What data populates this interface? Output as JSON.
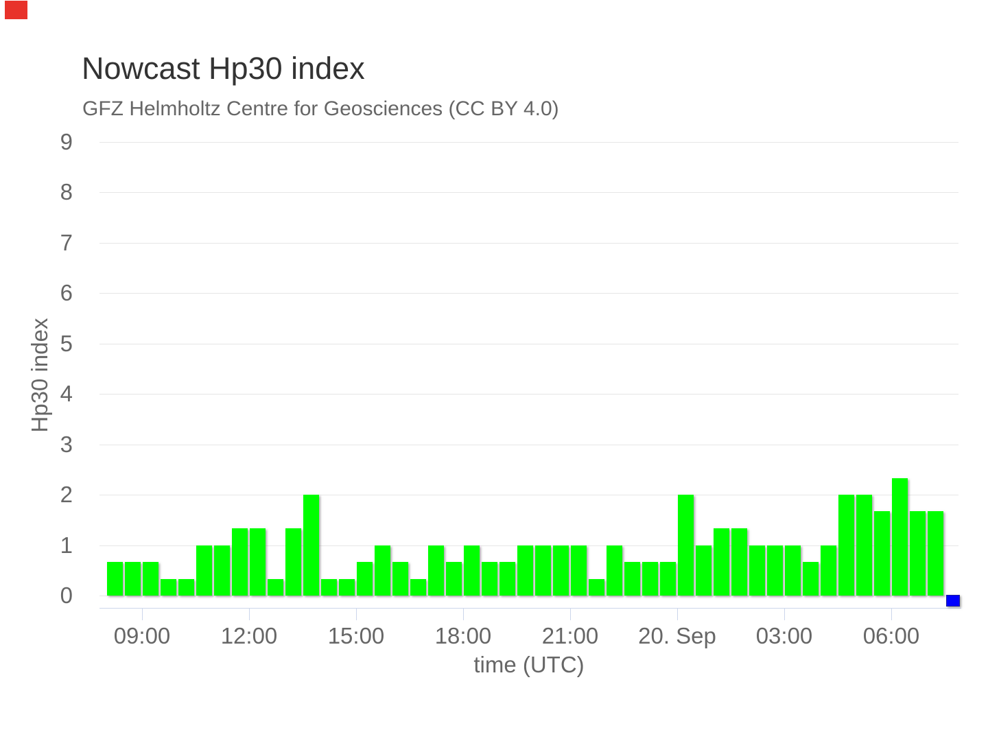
{
  "page": {
    "background": "#ffffff",
    "corner_marker": {
      "color": "#e8322a"
    }
  },
  "chart_data": {
    "type": "bar",
    "title": "Nowcast Hp30 index",
    "subtitle": "GFZ Helmholtz Centre for Geosciences (CC BY 4.0)",
    "xlabel": "time (UTC)",
    "ylabel": "Hp30 index",
    "ylim": [
      0,
      9
    ],
    "yticks": [
      0,
      1,
      2,
      3,
      4,
      5,
      6,
      7,
      8,
      9
    ],
    "xticks": [
      "09:00",
      "12:00",
      "15:00",
      "18:00",
      "21:00",
      "20. Sep",
      "03:00",
      "06:00"
    ],
    "grid": "horizontal",
    "legend": "none",
    "bar_interval_minutes": 30,
    "colors": {
      "bar": "#00ff00",
      "nowcast_bar": "#0000ff",
      "gridline": "#e6e6e6",
      "axis": "#ccd6eb",
      "labels": "#666666",
      "title": "#333333",
      "subtitle": "#666666"
    },
    "bars": [
      {
        "time": "19 Sep 08:00",
        "value": 0.67
      },
      {
        "time": "19 Sep 08:30",
        "value": 0.67
      },
      {
        "time": "19 Sep 09:00",
        "value": 0.67
      },
      {
        "time": "19 Sep 09:30",
        "value": 0.33
      },
      {
        "time": "19 Sep 10:00",
        "value": 0.33
      },
      {
        "time": "19 Sep 10:30",
        "value": 1
      },
      {
        "time": "19 Sep 11:00",
        "value": 1
      },
      {
        "time": "19 Sep 11:30",
        "value": 1.33
      },
      {
        "time": "19 Sep 12:00",
        "value": 1.33
      },
      {
        "time": "19 Sep 12:30",
        "value": 0.33
      },
      {
        "time": "19 Sep 13:00",
        "value": 1.33
      },
      {
        "time": "19 Sep 13:30",
        "value": 2
      },
      {
        "time": "19 Sep 14:00",
        "value": 0.33
      },
      {
        "time": "19 Sep 14:30",
        "value": 0.33
      },
      {
        "time": "19 Sep 15:00",
        "value": 0.67
      },
      {
        "time": "19 Sep 15:30",
        "value": 1
      },
      {
        "time": "19 Sep 16:00",
        "value": 0.67
      },
      {
        "time": "19 Sep 16:30",
        "value": 0.33
      },
      {
        "time": "19 Sep 17:00",
        "value": 1
      },
      {
        "time": "19 Sep 17:30",
        "value": 0.67
      },
      {
        "time": "19 Sep 18:00",
        "value": 1
      },
      {
        "time": "19 Sep 18:30",
        "value": 0.67
      },
      {
        "time": "19 Sep 19:00",
        "value": 0.67
      },
      {
        "time": "19 Sep 19:30",
        "value": 1
      },
      {
        "time": "19 Sep 20:00",
        "value": 1
      },
      {
        "time": "19 Sep 20:30",
        "value": 1
      },
      {
        "time": "19 Sep 21:00",
        "value": 1
      },
      {
        "time": "19 Sep 21:30",
        "value": 0.33
      },
      {
        "time": "19 Sep 22:00",
        "value": 1
      },
      {
        "time": "19 Sep 22:30",
        "value": 0.67
      },
      {
        "time": "19 Sep 23:00",
        "value": 0.67
      },
      {
        "time": "19 Sep 23:30",
        "value": 0.67
      },
      {
        "time": "20 Sep 00:00",
        "value": 2
      },
      {
        "time": "20 Sep 00:30",
        "value": 1
      },
      {
        "time": "20 Sep 01:00",
        "value": 1.33
      },
      {
        "time": "20 Sep 01:30",
        "value": 1.33
      },
      {
        "time": "20 Sep 02:00",
        "value": 1
      },
      {
        "time": "20 Sep 02:30",
        "value": 1
      },
      {
        "time": "20 Sep 03:00",
        "value": 1
      },
      {
        "time": "20 Sep 03:30",
        "value": 0.67
      },
      {
        "time": "20 Sep 04:00",
        "value": 1
      },
      {
        "time": "20 Sep 04:30",
        "value": 2
      },
      {
        "time": "20 Sep 05:00",
        "value": 2
      },
      {
        "time": "20 Sep 05:30",
        "value": 1.67
      },
      {
        "time": "20 Sep 06:00",
        "value": 2.33
      },
      {
        "time": "20 Sep 06:30",
        "value": 1.67
      },
      {
        "time": "20 Sep 07:00",
        "value": 1.67
      },
      {
        "time": "20 Sep 07:30",
        "value": 0,
        "nowcast": true
      }
    ]
  }
}
